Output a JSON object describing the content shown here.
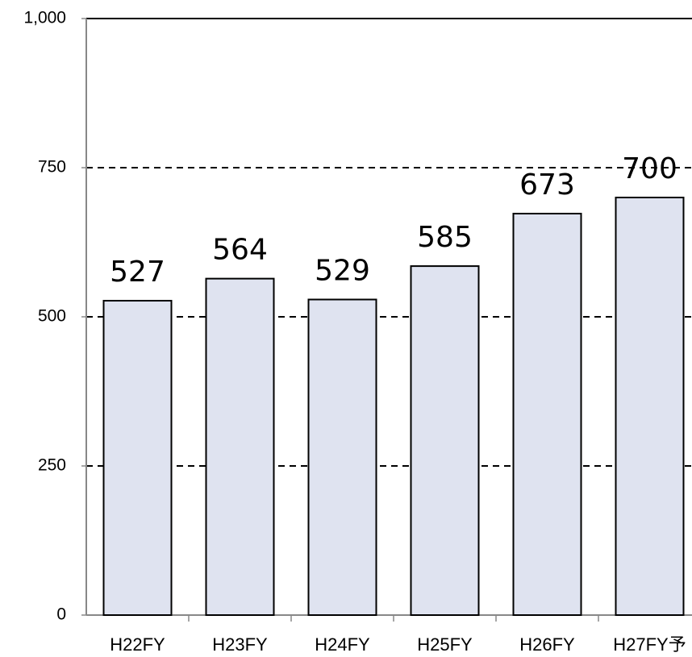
{
  "chart_data": {
    "type": "bar",
    "categories": [
      "H22FY",
      "H23FY",
      "H24FY",
      "H25FY",
      "H26FY",
      "H27FY予"
    ],
    "values": [
      527,
      564,
      529,
      585,
      673,
      700
    ],
    "color": "#dfe3f0",
    "ylim": [
      0,
      1000
    ],
    "yticks": [
      0,
      250,
      500,
      750,
      {
        "value": 1000,
        "label": "1,000"
      }
    ],
    "grid": true
  }
}
